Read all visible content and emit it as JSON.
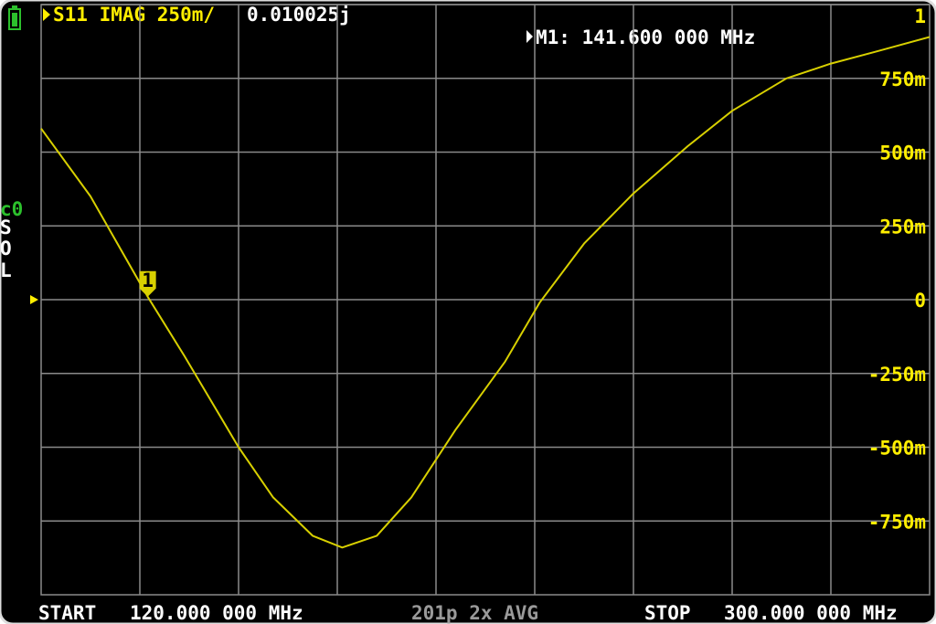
{
  "chart_data": {
    "type": "line",
    "x": [
      120,
      130,
      141.6,
      149,
      160,
      167,
      175,
      181,
      188,
      195,
      204,
      214,
      221,
      230,
      240,
      251,
      260,
      271,
      280,
      289,
      300
    ],
    "values": [
      0.58,
      0.35,
      0.01,
      -0.19,
      -0.5,
      -0.67,
      -0.8,
      -0.84,
      -0.8,
      -0.67,
      -0.44,
      -0.21,
      -0.01,
      0.19,
      0.36,
      0.52,
      0.64,
      0.75,
      0.8,
      0.84,
      0.89
    ],
    "color": "#d8d000",
    "xlim": [
      120,
      300
    ],
    "ylim": [
      -1,
      1
    ],
    "yticks": [
      1,
      {
        "value": 0.75,
        "label": "750m"
      },
      {
        "value": 0.5,
        "label": "500m"
      },
      {
        "value": 0.25,
        "label": "250m"
      },
      0,
      {
        "value": -0.25,
        "label": "-250m"
      },
      {
        "value": -0.5,
        "label": "-500m"
      },
      {
        "value": -0.75,
        "label": "-750m"
      }
    ],
    "grid": true,
    "marker": {
      "label": "1",
      "x": 141.6,
      "value": 0.010025
    }
  },
  "header": {
    "trace": "S11 IMAG 250m/",
    "readout": "0.010025j",
    "marker_readout": "M1: 141.600 000 MHz"
  },
  "status": [
    "c0",
    "S",
    "O",
    "L"
  ],
  "footer": {
    "start_label": "START",
    "start": "120.000 000 MHz",
    "points": "201p 2x AVG",
    "stop_label": "STOP",
    "stop": "300.000 000 MHz"
  }
}
